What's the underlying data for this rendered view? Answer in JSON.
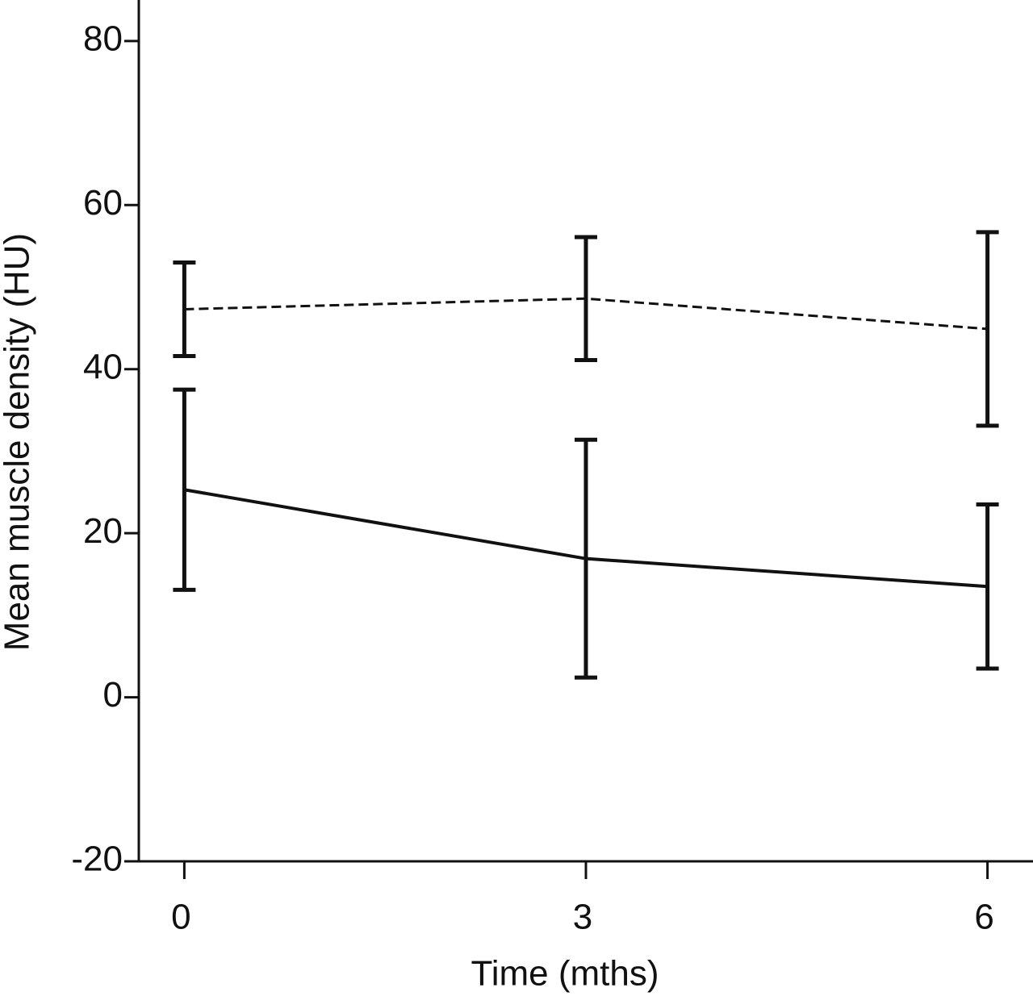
{
  "chart_data": {
    "type": "line",
    "x_label": "Time (mths)",
    "y_label": "Mean muscle density (HU)",
    "x": [
      0,
      3,
      6
    ],
    "series": [
      {
        "color": "#111111",
        "dashed": true,
        "values": [
          47.3,
          48.6,
          44.9
        ],
        "errors": [
          5.7,
          7.5,
          11.8
        ]
      },
      {
        "color": "#111111",
        "dashed": false,
        "values": [
          25.3,
          16.9,
          13.5
        ],
        "errors": [
          12.2,
          14.5,
          10.0
        ]
      }
    ],
    "xlim": [
      -0.34,
      6.34
    ],
    "xticks": [
      0,
      3,
      6
    ],
    "ylim": [
      -20,
      85
    ],
    "yticks": [
      -20,
      0,
      20,
      40,
      60,
      80
    ],
    "grid": false
  }
}
